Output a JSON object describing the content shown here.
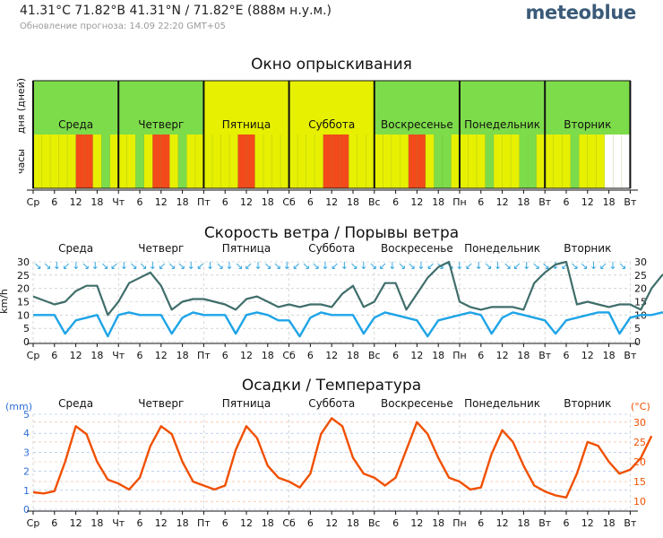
{
  "header": {
    "coords": "41.31°C 71.82°В  41.31°N / 71.82°E (888м н.у.м.)",
    "updated": "Обновление прогноза: 14.09 22:20 GMT+05",
    "brand": "meteoblue"
  },
  "x_axis_ticks": [
    "Ср",
    "6",
    "12",
    "18",
    "Чт",
    "6",
    "12",
    "18",
    "Пт",
    "6",
    "12",
    "18",
    "Сб",
    "6",
    "12",
    "18",
    "Вс",
    "6",
    "12",
    "18",
    "Пн",
    "6",
    "12",
    "18",
    "Вт",
    "6",
    "12",
    "18",
    "Вт"
  ],
  "days": [
    "Среда",
    "Четверг",
    "Пятница",
    "Суббота",
    "Воскресенье",
    "Понедельник",
    "Вторник"
  ],
  "colors": {
    "green": "#7ddc4a",
    "yellow": "#e6f000",
    "red": "#f24a1a",
    "wind": "#1ea4e6",
    "gust": "#3f6e6a",
    "temp": "#f05000",
    "precip_axis": "#2f6fd6"
  },
  "chart_data": [
    {
      "type": "heatmap",
      "title": "Окно опрыскивания",
      "row_labels": [
        "дня (дней)",
        "часы"
      ],
      "days_rating": [
        "green",
        "green",
        "yellow",
        "yellow",
        "green",
        "green",
        "green"
      ],
      "hours_rating": [
        "yellow",
        "yellow",
        "yellow",
        "yellow",
        "yellow",
        "red",
        "red",
        "yellow",
        "green",
        "yellow",
        "yellow",
        "yellow",
        "green",
        "yellow",
        "red",
        "red",
        "yellow",
        "green",
        "yellow",
        "yellow",
        "yellow",
        "yellow",
        "yellow",
        "yellow",
        "red",
        "red",
        "yellow",
        "yellow",
        "yellow",
        "yellow",
        "yellow",
        "yellow",
        "yellow",
        "yellow",
        "red",
        "red",
        "red",
        "yellow",
        "yellow",
        "yellow",
        "yellow",
        "yellow",
        "yellow",
        "yellow",
        "red",
        "red",
        "yellow",
        "green",
        "green",
        "yellow",
        "yellow",
        "yellow",
        "yellow",
        "green",
        "yellow",
        "yellow",
        "yellow",
        "green",
        "green",
        "yellow",
        "yellow",
        "yellow",
        "yellow",
        "green",
        "yellow",
        "yellow",
        "yellow",
        "white",
        "white",
        "white"
      ]
    },
    {
      "type": "line",
      "title": "Скорость ветра / Порывы ветра",
      "ylabel": "km/h",
      "yticks": [
        "0",
        "5",
        "10",
        "15",
        "20",
        "25",
        "30"
      ],
      "ylim": [
        0,
        30
      ],
      "x_unit": "hours from Wednesday 00:00",
      "series": [
        {
          "kind": "wind",
          "x": [
            0,
            6,
            9,
            12,
            15,
            18,
            21,
            24,
            27,
            30,
            33,
            36,
            39,
            42,
            45,
            48,
            51,
            54,
            57,
            60,
            63,
            66,
            69,
            72,
            75,
            78,
            81,
            84,
            87,
            90,
            93,
            96,
            99,
            102,
            105,
            108,
            111,
            114,
            117,
            120,
            123,
            126,
            129,
            132,
            135,
            138,
            141,
            144,
            147,
            150,
            153,
            156,
            159,
            162,
            165,
            168,
            171,
            174,
            177,
            180
          ],
          "values": [
            10,
            10,
            3,
            8,
            9,
            10,
            2,
            10,
            11,
            10,
            10,
            10,
            3,
            9,
            11,
            10,
            10,
            10,
            3,
            10,
            11,
            10,
            8,
            8,
            2,
            9,
            11,
            10,
            10,
            10,
            3,
            9,
            11,
            10,
            9,
            8,
            2,
            8,
            9,
            10,
            11,
            10,
            3,
            9,
            11,
            10,
            9,
            8,
            3,
            8,
            9,
            10,
            11,
            11,
            3,
            9,
            10,
            10,
            11,
            10
          ]
        },
        {
          "kind": "gust",
          "x": [
            0,
            6,
            9,
            12,
            15,
            18,
            21,
            24,
            27,
            30,
            33,
            36,
            39,
            42,
            45,
            48,
            51,
            54,
            57,
            60,
            63,
            66,
            69,
            72,
            75,
            78,
            81,
            84,
            87,
            90,
            93,
            96,
            99,
            102,
            105,
            108,
            111,
            114,
            117,
            120,
            123,
            126,
            129,
            132,
            135,
            138,
            141,
            144,
            147,
            150,
            153,
            156,
            159,
            162,
            165,
            168,
            171,
            174,
            177,
            180
          ],
          "values": [
            17,
            14,
            15,
            19,
            21,
            21,
            10,
            15,
            22,
            24,
            26,
            21,
            12,
            15,
            16,
            16,
            15,
            14,
            12,
            16,
            17,
            15,
            13,
            14,
            13,
            14,
            14,
            13,
            18,
            21,
            13,
            15,
            22,
            22,
            12,
            18,
            24,
            28,
            30,
            15,
            13,
            12,
            13,
            13,
            13,
            12,
            22,
            26,
            29,
            30,
            14,
            15,
            14,
            13,
            14,
            14,
            12,
            20,
            25,
            27
          ]
        }
      ]
    },
    {
      "type": "line",
      "title": "Осадки / Температура",
      "ylabel_left": "(mm)",
      "ylabel_right": "(°C)",
      "yticks_left": [
        "0",
        "1",
        "2",
        "3",
        "4",
        "5"
      ],
      "yticks_right": [
        "10",
        "15",
        "20",
        "25",
        "30"
      ],
      "ylim_left": [
        0,
        5
      ],
      "ylim_right": [
        8,
        32
      ],
      "x_unit": "hours from Wednesday 00:00",
      "series": [
        {
          "kind": "temperature",
          "x": [
            0,
            3,
            6,
            9,
            12,
            15,
            18,
            21,
            24,
            27,
            30,
            33,
            36,
            39,
            42,
            45,
            48,
            51,
            54,
            57,
            60,
            63,
            66,
            69,
            72,
            75,
            78,
            81,
            84,
            87,
            90,
            93,
            96,
            99,
            102,
            105,
            108,
            111,
            114,
            117,
            120,
            123,
            126,
            129,
            132,
            135,
            138,
            141,
            144,
            147,
            150,
            153,
            156,
            159,
            162,
            165,
            168,
            171,
            174
          ],
          "values": [
            12.3,
            12,
            12.6,
            20,
            29,
            27,
            20,
            15.5,
            14.5,
            13,
            16,
            24,
            29,
            27,
            20,
            15,
            14,
            13,
            14,
            23,
            29,
            26,
            19,
            16,
            15,
            13.5,
            17,
            27,
            31,
            29,
            21,
            17,
            16,
            14,
            16,
            23,
            30,
            27,
            21,
            16,
            15,
            13,
            13.5,
            22,
            28,
            25,
            19,
            14,
            12.5,
            11.5,
            11,
            17,
            25,
            24,
            20,
            17,
            18,
            21,
            26.5
          ]
        }
      ]
    }
  ]
}
